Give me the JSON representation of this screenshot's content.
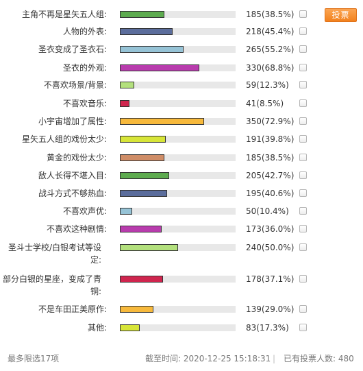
{
  "poll": {
    "vote_button_label": "投票",
    "colors": [
      "#5dab4f",
      "#5b6d9c",
      "#96c3d6",
      "#b83cad",
      "#b3e07d",
      "#cf254e",
      "#f7b93c",
      "#d7e538",
      "#cf8d67"
    ],
    "options": [
      {
        "label": "主角不再是星矢五人组:",
        "count": "185(38.5%)",
        "percent": 38.5
      },
      {
        "label": "人物的外表:",
        "count": "218(45.4%)",
        "percent": 45.4
      },
      {
        "label": "圣衣变成了圣衣石:",
        "count": "265(55.2%)",
        "percent": 55.2
      },
      {
        "label": "圣衣的外观:",
        "count": "330(68.8%)",
        "percent": 68.8
      },
      {
        "label": "不喜欢场景/背景:",
        "count": "59(12.3%)",
        "percent": 12.3
      },
      {
        "label": "不喜欢音乐:",
        "count": "41(8.5%)",
        "percent": 8.5
      },
      {
        "label": "小宇宙增加了属性:",
        "count": "350(72.9%)",
        "percent": 72.9
      },
      {
        "label": "星矢五人组的戏份太少:",
        "count": "191(39.8%)",
        "percent": 39.8
      },
      {
        "label": "黄金的戏份太少:",
        "count": "185(38.5%)",
        "percent": 38.5
      },
      {
        "label": "敌人长得不堪入目:",
        "count": "205(42.7%)",
        "percent": 42.7
      },
      {
        "label": "战斗方式不够热血:",
        "count": "195(40.6%)",
        "percent": 40.6
      },
      {
        "label": "不喜欢声优:",
        "count": "50(10.4%)",
        "percent": 10.4
      },
      {
        "label": "不喜欢这种剧情:",
        "count": "173(36.0%)",
        "percent": 36.0
      },
      {
        "label": "圣斗士学校/白银考试等设定:",
        "count": "240(50.0%)",
        "percent": 50.0
      },
      {
        "label": "部分白银的星座，变成了青铜:",
        "count": "178(37.1%)",
        "percent": 37.1
      },
      {
        "label": "不是车田正美原作:",
        "count": "139(29.0%)",
        "percent": 29.0
      },
      {
        "label": "其他:",
        "count": "83(17.3%)",
        "percent": 17.3
      }
    ]
  },
  "footer": {
    "max_choice": "最多限选17项",
    "deadline": "截至时间: 2020-12-25 15:18:31",
    "separator": "|",
    "voters": "已有投票人数: 480"
  }
}
